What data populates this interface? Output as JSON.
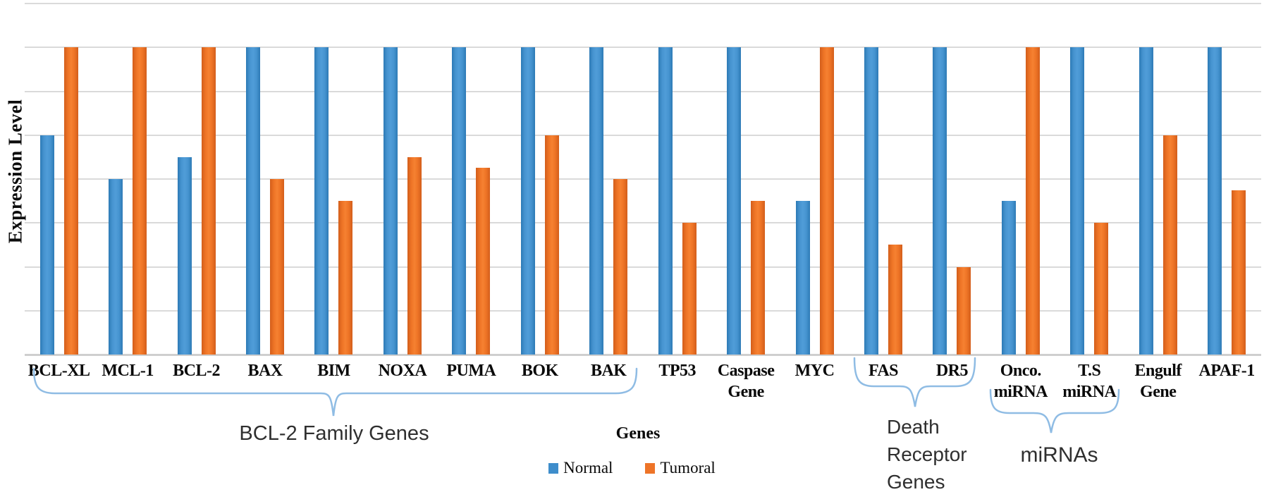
{
  "chart_data": {
    "type": "bar",
    "title": "",
    "xlabel": "",
    "ylabel": "Expression Level",
    "ylim": [
      0,
      8
    ],
    "gridline_count": 9,
    "grid": true,
    "legend_position": "bottom",
    "note": "Values are in axis grid units (8 gridline intervals); tall bars are clipped at 7 units (one interval below the top gridline). No numeric tick labels are shown in the chart.",
    "categories": [
      "BCL-XL",
      "MCL-1",
      "BCL-2",
      "BAX",
      "BIM",
      "NOXA",
      "PUMA",
      "BOK",
      "BAK",
      "TP53",
      "Caspase Gene",
      "MYC",
      "FAS",
      "DR5",
      "Onco. miRNA",
      "T.S miRNA",
      "Engulf Gene",
      "APAF-1"
    ],
    "category_label_lines": [
      [
        "BCL-XL"
      ],
      [
        "MCL-1"
      ],
      [
        "BCL-2"
      ],
      [
        "BAX"
      ],
      [
        "BIM"
      ],
      [
        "NOXA"
      ],
      [
        "PUMA"
      ],
      [
        "BOK"
      ],
      [
        "BAK"
      ],
      [
        "TP53"
      ],
      [
        "Caspase",
        "Gene"
      ],
      [
        "MYC"
      ],
      [
        "FAS"
      ],
      [
        "DR5"
      ],
      [
        "Onco.",
        "miRNA"
      ],
      [
        "T.S",
        "miRNA"
      ],
      [
        "Engulf",
        "Gene"
      ],
      [
        "APAF-1"
      ]
    ],
    "series": [
      {
        "name": "Normal",
        "color": "#3E8DCB",
        "values": [
          5,
          4,
          4.5,
          7,
          7,
          7,
          7,
          7,
          7,
          7,
          7,
          3.5,
          7,
          7,
          3.5,
          7,
          7,
          7
        ]
      },
      {
        "name": "Tumoral",
        "color": "#EE7428",
        "values": [
          7,
          7,
          7,
          4,
          3.5,
          4.5,
          4.25,
          5,
          4,
          3,
          3.5,
          7,
          2.5,
          2,
          7,
          3,
          5,
          3.75
        ]
      }
    ],
    "group_annotations": [
      {
        "label": "BCL-2 Family Genes",
        "lines": [
          "BCL-2 Family Genes"
        ],
        "from": "BCL-XL",
        "to": "BAK",
        "has_brace": true
      },
      {
        "label": "Genes",
        "lines": [
          "Genes"
        ],
        "from": "TP53",
        "to": "MYC",
        "has_brace": false
      },
      {
        "label": "Death Receptor Genes",
        "lines": [
          "Death",
          "Receptor",
          "Genes"
        ],
        "from": "FAS",
        "to": "DR5",
        "has_brace": true
      },
      {
        "label": "miRNAs",
        "lines": [
          "miRNAs"
        ],
        "from": "Onco. miRNA",
        "to": "T.S miRNA",
        "has_brace": true
      }
    ],
    "colors": {
      "normal_bar": "#3E8DCB",
      "tumoral_bar": "#EE7428",
      "gridline": "#DADADA",
      "brace": "#8FBCE4",
      "text": "#0A0A0A"
    }
  }
}
